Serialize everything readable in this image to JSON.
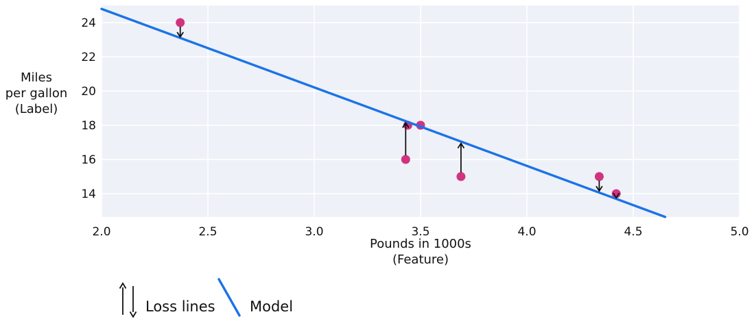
{
  "figure": {
    "ylabel_lines": [
      "Miles",
      "per gallon",
      "(Label)"
    ],
    "xlabel_lines": [
      "Pounds in 1000s",
      "(Feature)"
    ]
  },
  "legend": {
    "loss_label": "Loss lines",
    "model_label": "Model"
  },
  "colors": {
    "point": "#d23380",
    "model_line": "#1a73e8",
    "plot_bg": "#eef1f7",
    "grid": "#ffffff",
    "arrow": "#111111"
  },
  "chart_data": {
    "type": "scatter",
    "title": "",
    "xlabel": "Pounds in 1000s (Feature)",
    "ylabel": "Miles per gallon (Label)",
    "xlim": [
      2.0,
      5.0
    ],
    "ylim": [
      12.64,
      25.0
    ],
    "grid": true,
    "legend_position": "bottom-left",
    "xticks": [
      "2.0",
      "2.5",
      "3.0",
      "3.5",
      "4.0",
      "4.5",
      "5.0"
    ],
    "yticks": [
      "14",
      "16",
      "18",
      "20",
      "22",
      "24"
    ],
    "points": [
      {
        "x": 2.37,
        "y": 24
      },
      {
        "x": 3.43,
        "y": 16
      },
      {
        "x": 3.44,
        "y": 18
      },
      {
        "x": 3.5,
        "y": 18
      },
      {
        "x": 3.69,
        "y": 15
      },
      {
        "x": 4.34,
        "y": 15
      },
      {
        "x": 4.42,
        "y": 14
      }
    ],
    "model_line": {
      "x1": 2.0,
      "y1": 24.8,
      "x2": 4.65,
      "y2": 12.64
    },
    "loss_lines": [
      {
        "x": 2.37,
        "from_y": 24,
        "to_y": 23.1,
        "direction": "down"
      },
      {
        "x": 3.43,
        "from_y": 16,
        "to_y": 18.2,
        "direction": "up"
      },
      {
        "x": 3.69,
        "from_y": 15,
        "to_y": 17.0,
        "direction": "up"
      },
      {
        "x": 4.34,
        "from_y": 15,
        "to_y": 14.1,
        "direction": "down"
      },
      {
        "x": 4.42,
        "from_y": 14,
        "to_y": 13.7,
        "direction": "down"
      }
    ]
  }
}
